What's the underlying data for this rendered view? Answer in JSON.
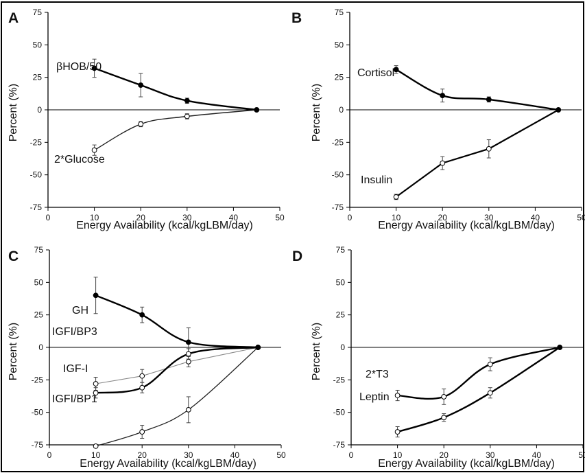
{
  "chart_data": [
    {
      "panel": "A",
      "type": "line",
      "xlabel": "Energy Availability (kcal/kgLBM/day)",
      "ylabel": "Percent (%)",
      "xlim": [
        0,
        50
      ],
      "ylim": [
        -75,
        75
      ],
      "xticks": [
        "0",
        "10",
        "20",
        "30",
        "40",
        "50"
      ],
      "yticks": [
        "75",
        "50",
        "25",
        "0",
        "-25",
        "-50",
        "-75"
      ],
      "series": [
        {
          "name": "βHOB/50",
          "marker": "filled",
          "x": [
            10,
            20,
            30,
            45
          ],
          "y": [
            32,
            19,
            7,
            0
          ],
          "err": [
            7,
            9,
            2,
            0
          ]
        },
        {
          "name": "2*Glucose",
          "marker": "open",
          "x": [
            10,
            20,
            30,
            45
          ],
          "y": [
            -31,
            -11,
            -5,
            0
          ],
          "err": [
            4,
            2,
            2,
            0
          ]
        }
      ]
    },
    {
      "panel": "B",
      "type": "line",
      "xlabel": "Energy Availability (kcal/kgLBM/day)",
      "ylabel": "Percent (%)",
      "xlim": [
        0,
        50
      ],
      "ylim": [
        -75,
        75
      ],
      "xticks": [
        "0",
        "10",
        "20",
        "30",
        "40",
        "50"
      ],
      "yticks": [
        "75",
        "50",
        "25",
        "0",
        "-25",
        "-50",
        "-75"
      ],
      "series": [
        {
          "name": "Cortisol",
          "marker": "filled",
          "x": [
            10,
            20,
            30,
            45
          ],
          "y": [
            31,
            11,
            8,
            0
          ],
          "err": [
            3,
            5,
            2,
            0
          ]
        },
        {
          "name": "Insulin",
          "marker": "open",
          "x": [
            10,
            20,
            30,
            45
          ],
          "y": [
            -67,
            -41,
            -30,
            0
          ],
          "err": [
            2,
            5,
            7,
            0
          ]
        }
      ]
    },
    {
      "panel": "C",
      "type": "line",
      "xlabel": "Energy Availability (kcal/kgLBM/day)",
      "ylabel": "Percent (%)",
      "xlim": [
        0,
        50
      ],
      "ylim": [
        -75,
        75
      ],
      "xticks": [
        "0",
        "10",
        "20",
        "30",
        "40",
        "50"
      ],
      "yticks": [
        "75",
        "50",
        "25",
        "0",
        "-25",
        "-50",
        "-75"
      ],
      "series": [
        {
          "name": "GH",
          "marker": "filled",
          "x": [
            10,
            20,
            30,
            45
          ],
          "y": [
            40,
            25,
            4,
            0
          ],
          "err": [
            14,
            6,
            11,
            0
          ]
        },
        {
          "name": "IGFI/BP3",
          "marker": "open",
          "x": [
            10,
            20,
            30,
            45
          ],
          "y": [
            -28,
            -22,
            -11,
            0
          ],
          "err": [
            5,
            5,
            4,
            0
          ]
        },
        {
          "name": "IGF-I",
          "marker": "open",
          "x": [
            10,
            20,
            30,
            45
          ],
          "y": [
            -35,
            -31,
            -5,
            0
          ],
          "err": [
            4,
            4,
            4,
            0
          ]
        },
        {
          "name": "IGFI/BP1",
          "marker": "open",
          "x": [
            10,
            20,
            30,
            45
          ],
          "y": [
            -76,
            -65,
            -48,
            0
          ],
          "err": [
            1,
            5,
            10,
            0
          ]
        }
      ]
    },
    {
      "panel": "D",
      "type": "line",
      "xlabel": "Energy Availability (kcal/kgLBM/day)",
      "ylabel": "Percent (%)",
      "xlim": [
        0,
        50
      ],
      "ylim": [
        -75,
        75
      ],
      "xticks": [
        "0",
        "10",
        "20",
        "30",
        "40",
        "50"
      ],
      "yticks": [
        "75",
        "50",
        "25",
        "0",
        "-25",
        "-50",
        "-75"
      ],
      "series": [
        {
          "name": "2*T3",
          "marker": "open",
          "x": [
            10,
            20,
            30,
            45
          ],
          "y": [
            -37,
            -38,
            -13,
            0
          ],
          "err": [
            4,
            6,
            5,
            0
          ]
        },
        {
          "name": "Leptin",
          "marker": "open",
          "x": [
            10,
            20,
            30,
            45
          ],
          "y": [
            -65,
            -54,
            -35,
            0
          ],
          "err": [
            4,
            3,
            4,
            0
          ]
        }
      ]
    }
  ]
}
